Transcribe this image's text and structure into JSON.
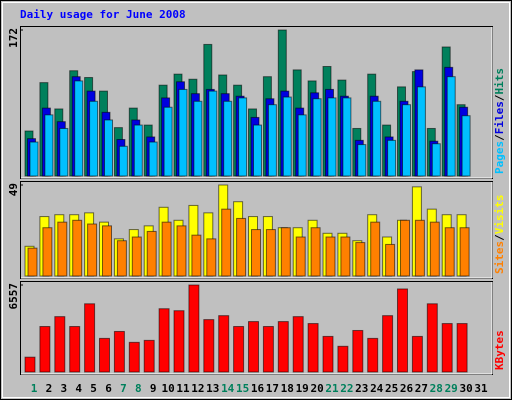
{
  "title": "Daily usage for June 2008",
  "legend_separator": "/",
  "categories": [
    "1",
    "2",
    "3",
    "4",
    "5",
    "6",
    "7",
    "8",
    "9",
    "10",
    "11",
    "12",
    "13",
    "14",
    "15",
    "16",
    "17",
    "18",
    "19",
    "20",
    "21",
    "22",
    "23",
    "24",
    "25",
    "26",
    "27",
    "28",
    "29",
    "30",
    "31"
  ],
  "category_label_colors": [
    "#00805c",
    "#000000",
    "#000000",
    "#000000",
    "#000000",
    "#000000",
    "#00805c",
    "#00805c",
    "#000000",
    "#000000",
    "#000000",
    "#000000",
    "#000000",
    "#00805c",
    "#00805c",
    "#000000",
    "#000000",
    "#000000",
    "#000000",
    "#000000",
    "#00805c",
    "#00805c",
    "#000000",
    "#000000",
    "#000000",
    "#000000",
    "#000000",
    "#00805c",
    "#00805c",
    "#000000",
    "#000000"
  ],
  "chart_data": [
    {
      "type": "bar",
      "ylim": [
        0,
        172
      ],
      "yticks": [
        172
      ],
      "series": [
        {
          "name": "Hits",
          "color": "#00805c",
          "values": [
            53,
            110,
            79,
            124,
            116,
            100,
            57,
            80,
            60,
            107,
            120,
            114,
            155,
            119,
            107,
            79,
            117,
            172,
            125,
            112,
            129,
            113,
            56,
            120,
            60,
            105,
            123,
            56,
            152,
            84,
            null
          ]
        },
        {
          "name": "Files",
          "color": "#0000e0",
          "values": [
            44,
            80,
            64,
            117,
            100,
            75,
            43,
            66,
            46,
            92,
            111,
            97,
            102,
            97,
            94,
            69,
            91,
            100,
            80,
            98,
            102,
            94,
            42,
            94,
            46,
            88,
            125,
            41,
            128,
            81,
            null
          ]
        },
        {
          "name": "Pages",
          "color": "#00c0ff",
          "values": [
            40,
            72,
            56,
            112,
            88,
            66,
            35,
            60,
            40,
            81,
            102,
            88,
            100,
            88,
            92,
            60,
            84,
            93,
            72,
            91,
            92,
            92,
            37,
            88,
            42,
            84,
            105,
            38,
            117,
            71,
            null
          ]
        }
      ]
    },
    {
      "type": "bar",
      "ylim": [
        0,
        49
      ],
      "yticks": [
        49
      ],
      "series": [
        {
          "name": "Visits",
          "color": "#ffff00",
          "values": [
            16,
            32,
            33,
            33,
            34,
            29,
            20,
            25,
            27,
            37,
            30,
            38,
            34,
            49,
            40,
            32,
            32,
            26,
            26,
            30,
            23,
            23,
            19,
            33,
            21,
            30,
            48,
            36,
            33,
            33,
            null
          ]
        },
        {
          "name": "Sites",
          "color": "#ff8000",
          "values": [
            15,
            26,
            29,
            30,
            28,
            27,
            19,
            21,
            24,
            29,
            27,
            22,
            20,
            36,
            31,
            25,
            25,
            26,
            21,
            26,
            21,
            21,
            18,
            29,
            17,
            30,
            30,
            29,
            26,
            26,
            null
          ]
        }
      ]
    },
    {
      "type": "bar",
      "ylim": [
        0,
        6557
      ],
      "yticks": [
        6557
      ],
      "series": [
        {
          "name": "KBytes",
          "color": "#ff0000",
          "values": [
            1118,
            3428,
            4173,
            3428,
            5141,
            2533,
            3055,
            2235,
            2384,
            4769,
            4620,
            6557,
            3949,
            4247,
            3428,
            3800,
            3428,
            3800,
            4173,
            3651,
            2682,
            1937,
            3129,
            2533,
            4247,
            6259,
            2682,
            5141,
            3651,
            3651,
            null
          ]
        }
      ]
    }
  ]
}
